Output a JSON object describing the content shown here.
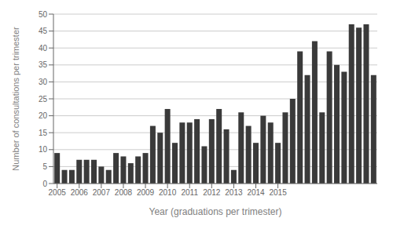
{
  "chart_data": {
    "type": "bar",
    "xlabel": "Year (graduations per trimester)",
    "ylabel": "Number of consultations per trimester",
    "categories": [
      "2005",
      null,
      null,
      "2006",
      null,
      null,
      "2007",
      null,
      null,
      "2008",
      null,
      null,
      "2009",
      null,
      null,
      "2010",
      null,
      null,
      "2011",
      null,
      null,
      "2012",
      null,
      null,
      "2013",
      null,
      null,
      "2014",
      null,
      null,
      "2015",
      null,
      null,
      null,
      null,
      null,
      null,
      null,
      null,
      null,
      null,
      null,
      null,
      null
    ],
    "values": [
      9,
      4,
      4,
      7,
      7,
      7,
      5,
      4,
      9,
      8,
      6,
      8,
      9,
      17,
      15,
      22,
      12,
      18,
      18,
      19,
      11,
      19,
      22,
      16,
      4,
      21,
      17,
      12,
      20,
      18,
      12,
      21,
      25,
      39,
      32,
      42,
      21,
      39,
      35,
      33,
      47,
      46,
      47,
      32
    ],
    "color": "#3a3a3a",
    "ylim": [
      0,
      50
    ],
    "yticks": [
      0,
      5,
      10,
      15,
      20,
      25,
      30,
      35,
      40,
      45,
      50
    ],
    "grid": true
  }
}
